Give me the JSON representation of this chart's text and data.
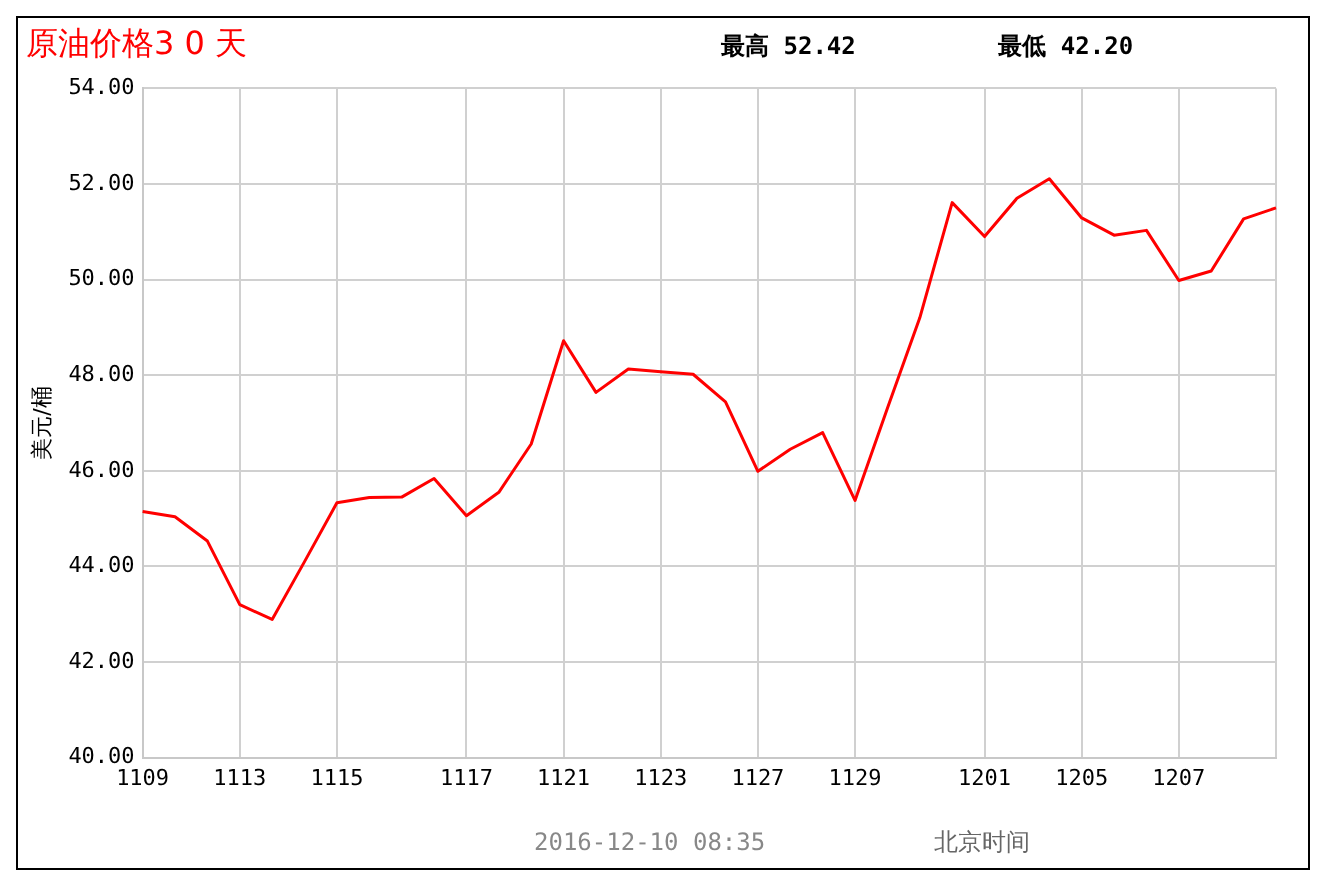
{
  "chart_data": {
    "type": "line",
    "title": "原油价格3 0 天",
    "ylabel": "美元/桶",
    "annotations": [
      "最高 52.42",
      "最低 42.20",
      "2016-12-10 08:35",
      "北京时间"
    ],
    "categories": [
      "1109",
      null,
      null,
      "1113",
      null,
      null,
      "1115",
      null,
      null,
      null,
      "1117",
      null,
      null,
      "1121",
      null,
      null,
      "1123",
      null,
      null,
      "1127",
      null,
      null,
      "1129",
      null,
      null,
      null,
      "1201",
      null,
      null,
      "1205",
      null,
      null,
      "1207",
      null,
      null,
      null
    ],
    "series": [
      {
        "color": "#ff0000",
        "values": [
          45.15,
          45.04,
          44.53,
          43.2,
          42.89,
          44.1,
          45.33,
          45.44,
          45.45,
          45.84,
          45.06,
          45.55,
          46.56,
          48.72,
          47.64,
          48.13,
          48.07,
          48.02,
          47.44,
          45.99,
          46.45,
          46.8,
          45.38,
          47.31,
          49.2,
          51.61,
          50.9,
          51.7,
          52.11,
          51.29,
          50.93,
          51.03,
          49.98,
          50.18,
          51.27,
          51.5
        ]
      }
    ],
    "ylim": [
      40,
      54
    ],
    "yticks": [
      {
        "value": 40,
        "label": "40.00"
      },
      {
        "value": 42,
        "label": "42.00"
      },
      {
        "value": 44,
        "label": "44.00"
      },
      {
        "value": 46,
        "label": "46.00"
      },
      {
        "value": 48,
        "label": "48.00"
      },
      {
        "value": 50,
        "label": "50.00"
      },
      {
        "value": 52,
        "label": "52.00"
      },
      {
        "value": 54,
        "label": "54.00"
      }
    ],
    "grid": true,
    "legend": false,
    "marker": "none",
    "line_style": "solid"
  }
}
